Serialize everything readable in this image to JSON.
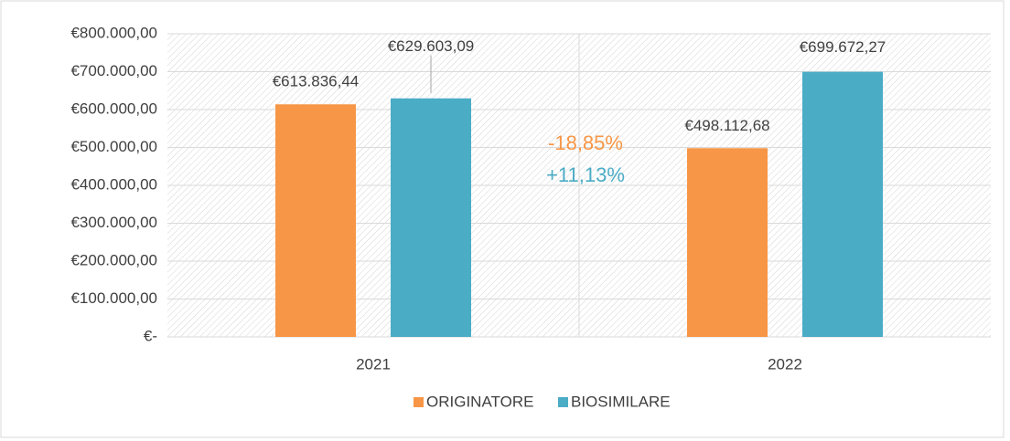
{
  "chart_data": {
    "type": "bar",
    "categories": [
      "2021",
      "2022"
    ],
    "series": [
      {
        "name": "ORIGINATORE",
        "color": "#F79646",
        "values": [
          613836.44,
          498112.68
        ],
        "value_labels": [
          "€613.836,44",
          "€498.112,68"
        ]
      },
      {
        "name": "BIOSIMILARE",
        "color": "#4BACC6",
        "values": [
          629603.09,
          699672.27
        ],
        "value_labels": [
          "€629.603,09",
          "€699.672,27"
        ]
      }
    ],
    "ylim": [
      0,
      800000
    ],
    "yticks": [
      {
        "value": 0,
        "label": "€-"
      },
      {
        "value": 100000,
        "label": "€100.000,00"
      },
      {
        "value": 200000,
        "label": "€200.000,00"
      },
      {
        "value": 300000,
        "label": "€300.000,00"
      },
      {
        "value": 400000,
        "label": "€400.000,00"
      },
      {
        "value": 500000,
        "label": "€500.000,00"
      },
      {
        "value": 600000,
        "label": "€600.000,00"
      },
      {
        "value": 700000,
        "label": "€700.000,00"
      },
      {
        "value": 800000,
        "label": "€800.000,00"
      }
    ],
    "grid": true,
    "legend": "bottom",
    "annotations": [
      {
        "text": "-18,85%",
        "color": "#F79646"
      },
      {
        "text": "+11,13%",
        "color": "#4BACC6"
      }
    ]
  }
}
